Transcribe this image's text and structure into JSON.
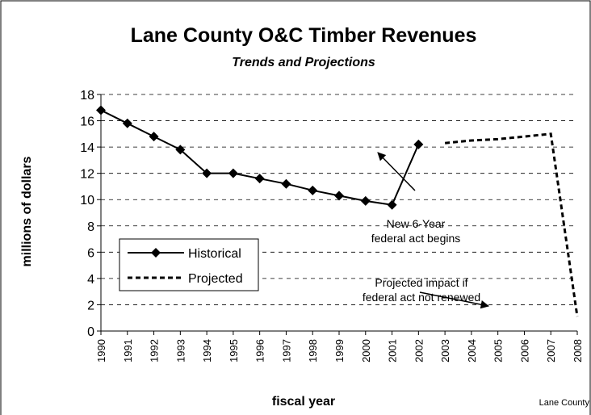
{
  "chart_data": {
    "type": "line",
    "title": "Lane County O&C Timber Revenues",
    "subtitle": "Trends and Projections",
    "y_label": "millions of dollars",
    "x_label": "fiscal year",
    "source": "Lane County",
    "categories": [
      "1990",
      "1991",
      "1992",
      "1993",
      "1994",
      "1995",
      "1996",
      "1997",
      "1998",
      "1999",
      "2000",
      "2001",
      "2002",
      "2003",
      "2004",
      "2005",
      "2006",
      "2007",
      "2008"
    ],
    "series": [
      {
        "name": "Historical",
        "color": "#000000",
        "style": "solid",
        "marker": "diamond",
        "values": [
          16.8,
          15.8,
          14.8,
          13.8,
          12.0,
          12.0,
          11.6,
          11.2,
          10.7,
          10.3,
          9.9,
          9.6,
          14.2,
          null,
          null,
          null,
          null,
          null,
          null
        ]
      },
      {
        "name": "Projected",
        "color": "#000000",
        "style": "dashed",
        "marker": "none",
        "values": [
          null,
          null,
          null,
          null,
          null,
          null,
          null,
          null,
          null,
          null,
          null,
          null,
          null,
          14.3,
          14.5,
          14.6,
          14.8,
          15.0,
          1.1
        ]
      }
    ],
    "ylim": [
      0,
      18
    ],
    "yticks": [
      0,
      2,
      4,
      6,
      8,
      10,
      12,
      14,
      16,
      18
    ],
    "grid": true,
    "legend": "left",
    "annotations": [
      {
        "lines": [
          "New 6-Year",
          "federal act begins"
        ]
      },
      {
        "lines": [
          "Projected impact if",
          "federal act not renewed"
        ]
      }
    ]
  }
}
